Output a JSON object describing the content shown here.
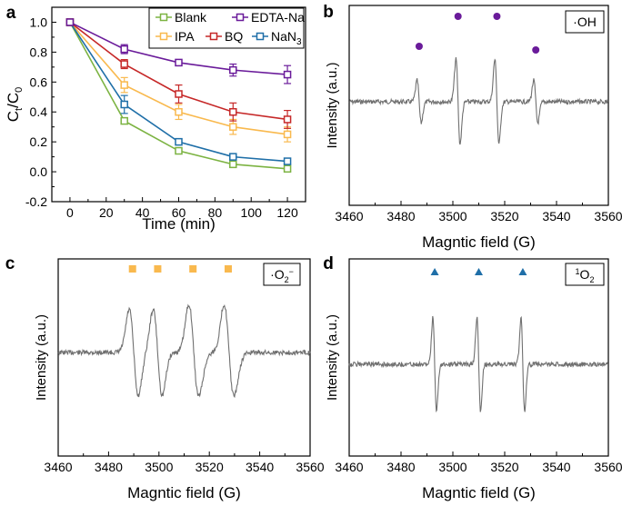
{
  "chart_data": [
    {
      "type": "line",
      "panel_label": "a",
      "xlabel": "Time (min)",
      "ylabel_main": "C",
      "ylabel_sub1": "t",
      "ylabel_slash": "/C",
      "ylabel_sub2": "0",
      "xlim": [
        -10,
        130
      ],
      "ylim": [
        -0.2,
        1.1
      ],
      "xticks": [
        "0",
        "20",
        "40",
        "60",
        "80",
        "100",
        "120"
      ],
      "yticks": [
        "-0.2",
        "0.0",
        "0.2",
        "0.4",
        "0.6",
        "0.8",
        "1.0"
      ],
      "x": [
        0,
        30,
        60,
        90,
        120
      ],
      "series": [
        {
          "name": "Blank",
          "color": "#7cb342",
          "marker": "square-open",
          "values": [
            1.0,
            0.34,
            0.14,
            0.05,
            0.02
          ],
          "errors": [
            0,
            0.02,
            0.015,
            0.015,
            0.015
          ]
        },
        {
          "name": "IPA",
          "color": "#f9b94e",
          "marker": "square-open",
          "values": [
            1.0,
            0.58,
            0.4,
            0.3,
            0.25
          ],
          "errors": [
            0,
            0.05,
            0.05,
            0.05,
            0.05
          ]
        },
        {
          "name": "NaN",
          "name_sub": "3",
          "color": "#1f6fa8",
          "marker": "square-open",
          "values": [
            1.0,
            0.45,
            0.2,
            0.1,
            0.07
          ],
          "errors": [
            0,
            0.06,
            0.02,
            0.02,
            0.02
          ]
        },
        {
          "name": "BQ",
          "color": "#c62828",
          "marker": "square-open",
          "values": [
            1.0,
            0.72,
            0.52,
            0.4,
            0.35
          ],
          "errors": [
            0,
            0.03,
            0.06,
            0.06,
            0.06
          ]
        },
        {
          "name": "EDTA-Na",
          "color": "#6a1b9a",
          "marker": "square-open",
          "values": [
            1.0,
            0.82,
            0.73,
            0.68,
            0.65
          ],
          "errors": [
            0,
            0.03,
            0.015,
            0.04,
            0.06
          ]
        }
      ]
    },
    {
      "type": "line",
      "panel_label": "b",
      "xlabel": "Magntic field (G)",
      "ylabel": "Intensity (a.u.)",
      "species_label": "·OH",
      "xlim": [
        3460,
        3560
      ],
      "xticks": [
        "3460",
        "3480",
        "3500",
        "3520",
        "3540",
        "3560"
      ],
      "line_color": "#707070",
      "peaks": [
        {
          "x": 3487,
          "amp": 0.8
        },
        {
          "x": 3502,
          "amp": 1.6
        },
        {
          "x": 3517,
          "amp": 1.6
        },
        {
          "x": 3532,
          "amp": 0.8
        }
      ],
      "peak_width_g": 0.8,
      "marker": "circle",
      "marker_color": "#6a1b9a",
      "marker_x": [
        3487,
        3502,
        3517,
        3532
      ]
    },
    {
      "type": "line",
      "panel_label": "c",
      "xlabel": "Magntic field (G)",
      "ylabel": "Intensity (a.u.)",
      "species_label": "·O",
      "species_sub": "2",
      "species_sup": "−",
      "xlim": [
        3460,
        3560
      ],
      "xticks": [
        "3460",
        "3480",
        "3500",
        "3520",
        "3540",
        "3560"
      ],
      "line_color": "#707070",
      "peaks": [
        {
          "x": 3490,
          "amp": 1.0
        },
        {
          "x": 3499.5,
          "amp": 1.0
        },
        {
          "x": 3513.5,
          "amp": 1.0
        },
        {
          "x": 3527.5,
          "amp": 1.0
        },
        {
          "x": 3515.5,
          "amp": 0.3
        },
        {
          "x": 3529.5,
          "amp": 0.3
        }
      ],
      "peak_width_g": 1.8,
      "marker": "square",
      "marker_color": "#f9b94e",
      "marker_x": [
        3489.5,
        3499.5,
        3513.5,
        3527.5
      ]
    },
    {
      "type": "line",
      "panel_label": "d",
      "xlabel": "Magntic field (G)",
      "ylabel": "Intensity (a.u.)",
      "species_label": "O",
      "species_sup": "1",
      "species_sub": "2",
      "xlim": [
        3460,
        3560
      ],
      "xticks": [
        "3460",
        "3480",
        "3500",
        "3520",
        "3540",
        "3560"
      ],
      "line_color": "#707070",
      "peaks": [
        {
          "x": 3493,
          "amp": 1.0
        },
        {
          "x": 3510,
          "amp": 1.0
        },
        {
          "x": 3527,
          "amp": 1.0
        }
      ],
      "peak_width_g": 0.7,
      "marker": "triangle",
      "marker_color": "#1f6fa8",
      "marker_x": [
        3493,
        3510,
        3527
      ]
    }
  ]
}
